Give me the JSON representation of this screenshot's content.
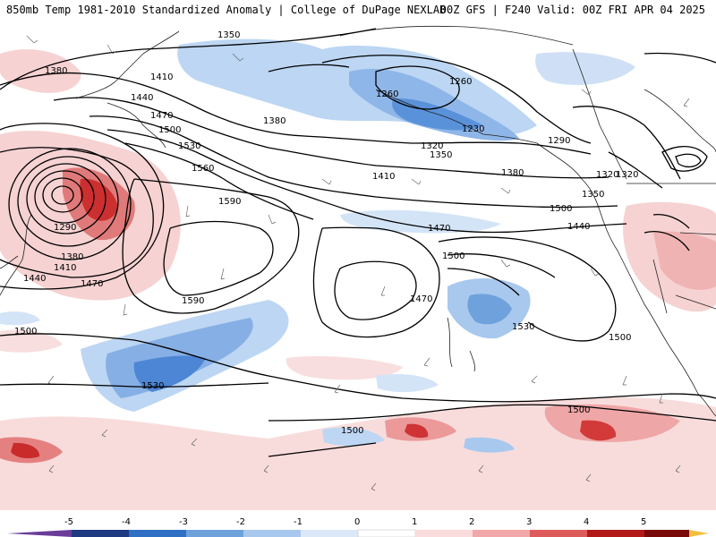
{
  "header": {
    "title_left": "850mb Temp 1981-2010 Standardized Anomaly | College of DuPage NEXLAB",
    "title_right": "00Z GFS | F240 Valid: 00Z FRI APR 04 2025"
  },
  "colorbar": {
    "ticks": [
      "-5",
      "-4",
      "-3",
      "-2",
      "-1",
      "0",
      "1",
      "2",
      "3",
      "4",
      "5"
    ],
    "colors": [
      "#6a3d9a",
      "#1f3a80",
      "#2f6fc4",
      "#6fa2dc",
      "#a9c8ee",
      "#dae8f8",
      "#ffffff",
      "#fbdcdc",
      "#f2a8a8",
      "#de5b5b",
      "#b21a1a",
      "#7a0a0a",
      "#f0c040"
    ]
  },
  "map": {
    "height_labels": [
      "1350",
      "1380",
      "1410",
      "1440",
      "1470",
      "1500",
      "1530",
      "1560",
      "1590",
      "1290",
      "1320",
      "1260",
      "1230",
      "1590",
      "1470",
      "1500",
      "1530",
      "1500",
      "1500",
      "1500",
      "1530",
      "1410",
      "1440",
      "1380",
      "1350",
      "1320",
      "1290",
      "1260",
      "1380",
      "1410",
      "1440",
      "1470",
      "1500",
      "1380",
      "1470",
      "1500",
      "1350",
      "1320"
    ],
    "colors": {
      "cold": "#a9c8ee",
      "cold_strong": "#4f8ad6",
      "warm": "#f6c9c9",
      "warm_strong": "#d33b3b",
      "contour": "#000000",
      "coast": "#222222"
    }
  }
}
